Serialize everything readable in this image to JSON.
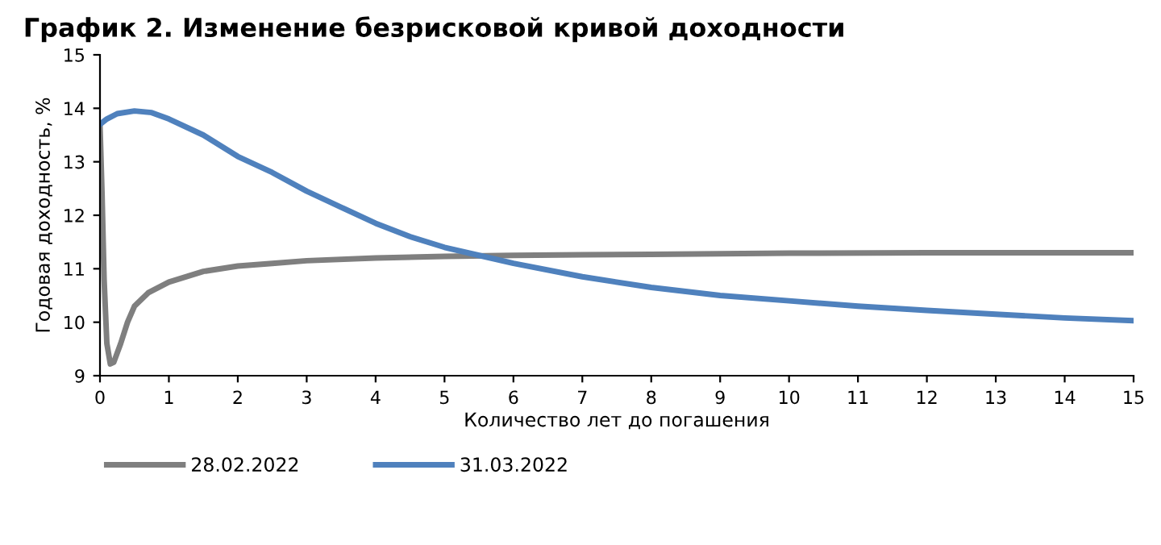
{
  "chart_data": {
    "type": "line",
    "title": "График 2. Изменение безрисковой кривой доходности",
    "xlabel": "Количество лет до погашения",
    "ylabel": "Годовая доходность, %",
    "xlim": [
      0,
      15
    ],
    "xticks": [
      0,
      1,
      2,
      3,
      4,
      5,
      6,
      7,
      8,
      9,
      10,
      11,
      12,
      13,
      14,
      15
    ],
    "ylim": [
      9,
      15
    ],
    "yticks": [
      9,
      10,
      11,
      12,
      13,
      14,
      15
    ],
    "grid": false,
    "legend": "bottom",
    "marker": "none",
    "line_style": "solid",
    "series": [
      {
        "name": "28.02.2022",
        "color": "#7f7f7f",
        "x": [
          0,
          0.03,
          0.06,
          0.1,
          0.15,
          0.2,
          0.3,
          0.4,
          0.5,
          0.7,
          1,
          1.5,
          2,
          2.5,
          3,
          4,
          5,
          6,
          7,
          8,
          10,
          12,
          15
        ],
        "values": [
          13.7,
          12.4,
          10.8,
          9.6,
          9.22,
          9.25,
          9.6,
          10.0,
          10.3,
          10.55,
          10.75,
          10.95,
          11.05,
          11.1,
          11.15,
          11.2,
          11.23,
          11.25,
          11.26,
          11.27,
          11.29,
          11.3,
          11.3
        ]
      },
      {
        "name": "31.03.2022",
        "color": "#4f81bd",
        "x": [
          0,
          0.1,
          0.25,
          0.5,
          0.75,
          1,
          1.5,
          2,
          2.5,
          3,
          3.5,
          4,
          4.5,
          5,
          5.5,
          6,
          7,
          8,
          9,
          10,
          11,
          12,
          13,
          14,
          15
        ],
        "values": [
          13.7,
          13.8,
          13.9,
          13.95,
          13.92,
          13.8,
          13.5,
          13.1,
          12.8,
          12.45,
          12.15,
          11.85,
          11.6,
          11.4,
          11.25,
          11.1,
          10.85,
          10.65,
          10.5,
          10.4,
          10.3,
          10.22,
          10.15,
          10.08,
          10.03
        ]
      }
    ]
  }
}
